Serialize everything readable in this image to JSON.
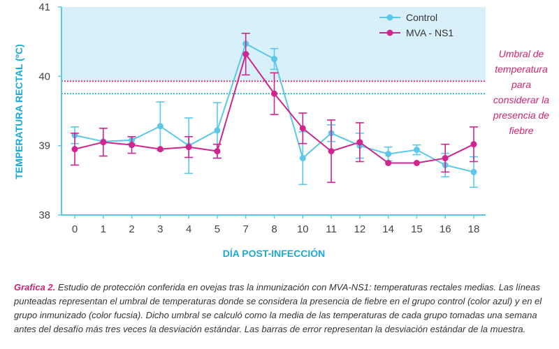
{
  "chart_data": {
    "type": "line",
    "categories": [
      "0",
      "1",
      "2",
      "3",
      "4",
      "5",
      "7",
      "8",
      "10",
      "11",
      "12",
      "14",
      "15",
      "16",
      "18"
    ],
    "series": [
      {
        "name": "Control",
        "color": "#5bc8e8",
        "values": [
          39.15,
          39.06,
          39.08,
          39.28,
          39.0,
          39.22,
          40.47,
          40.25,
          38.82,
          39.18,
          39.0,
          38.88,
          38.94,
          38.72,
          38.62
        ],
        "error": [
          0.12,
          0.0,
          0.05,
          0.35,
          0.4,
          0.4,
          0.15,
          0.15,
          0.38,
          0.12,
          0.18,
          0.1,
          0.07,
          0.17,
          0.22
        ]
      },
      {
        "name": "MVA - NS1",
        "color": "#d0248e",
        "values": [
          38.95,
          39.05,
          39.01,
          38.95,
          38.98,
          38.92,
          40.32,
          39.75,
          39.25,
          38.92,
          39.05,
          38.75,
          38.75,
          38.82,
          39.02
        ],
        "error": [
          0.23,
          0.2,
          0.12,
          0.0,
          0.15,
          0.1,
          0.3,
          0.3,
          0.22,
          0.45,
          0.28,
          0.0,
          0.0,
          0.2,
          0.25
        ]
      }
    ],
    "thresholds": {
      "control": 39.75,
      "mva": 39.93
    },
    "ylim": [
      38,
      41
    ],
    "yticks": [
      "38",
      "39",
      "40",
      "41"
    ],
    "xlabel": "DÍA POST-INFECCIÓN",
    "ylabel": "TEMPERATURA RECTAL (ºC)",
    "legend_position": "top-right",
    "colors": {
      "fever_zone": "#d7f0f9",
      "axis": "#5bc8e8",
      "control_threshold": "#1aa9d8",
      "mva_threshold": "#c41c72"
    }
  },
  "annotation": "Umbral de temperatura para considerar la presencia de fiebre",
  "caption": {
    "lead": "Grafica 2.",
    "text": " Estudio de protección conferida en ovejas tras la inmunización con MVA-NS1: temperaturas rectales medias. Las líneas punteadas representan el umbral de temperaturas donde se considera la presencia de fiebre en el grupo control (color azul) y en el grupo inmunizado (color fucsia). Dicho umbral se calculó como la media de las temperaturas de cada grupo tomadas una semana antes del desafío más tres veces la desviación estándar. Las barras de error representan la desviación estándar de la muestra."
  }
}
